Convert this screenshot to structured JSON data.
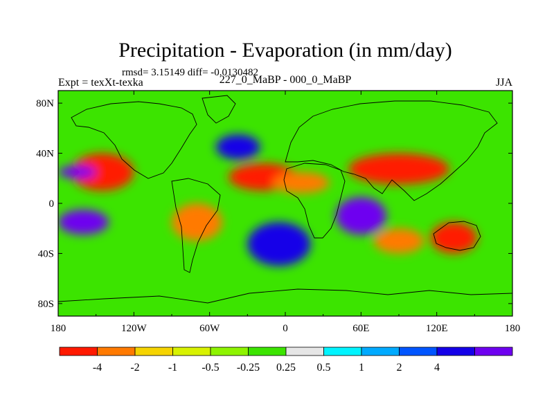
{
  "chart_data": {
    "type": "heatmap",
    "title": "Precipitation - Evaporation (in mm/day)",
    "stats_text": "rmsd= 3.15149 diff= -0.0130482",
    "left_label": "Expt = texXt-texka",
    "center_label": "227_0_MaBP - 000_0_MaBP",
    "right_label": "JJA",
    "x_ticks": [
      "180",
      "120W",
      "60W",
      "0",
      "60E",
      "120E",
      "180"
    ],
    "y_ticks": [
      "80N",
      "40N",
      "0",
      "40S",
      "80S"
    ],
    "xlim": [
      -180,
      180
    ],
    "ylim": [
      -90,
      90
    ],
    "colorbar": {
      "colors": [
        "#ff1a00",
        "#ff7a00",
        "#f6d400",
        "#d8f200",
        "#8ef400",
        "#3ce400",
        "#e6e6e6",
        "#00f4ff",
        "#00aaff",
        "#0055ff",
        "#1500e8",
        "#6e00f0"
      ],
      "labels": [
        "-4",
        "-2",
        "-1",
        "-0.5",
        "-0.25",
        "0.25",
        "0.5",
        "1",
        "2",
        "4"
      ]
    },
    "regions": [
      {
        "name": "north-pacific-dry",
        "x": [
          -170,
          -120
        ],
        "y": [
          10,
          40
        ],
        "bin": 0
      },
      {
        "name": "north-atlantic-dry",
        "x": [
          -45,
          10
        ],
        "y": [
          10,
          32
        ],
        "bin": 0
      },
      {
        "name": "sahara-dry",
        "x": [
          -10,
          35
        ],
        "y": [
          8,
          25
        ],
        "bin": 1
      },
      {
        "name": "asia-dry",
        "x": [
          50,
          130
        ],
        "y": [
          15,
          40
        ],
        "bin": 0
      },
      {
        "name": "australia-dry",
        "x": [
          115,
          152
        ],
        "y": [
          -40,
          -15
        ],
        "bin": 0
      },
      {
        "name": "south-indian-dry",
        "x": [
          70,
          110
        ],
        "y": [
          -40,
          -20
        ],
        "bin": 1
      },
      {
        "name": "south-america-dry",
        "x": [
          -90,
          -50
        ],
        "y": [
          -30,
          0
        ],
        "bin": 1
      },
      {
        "name": "north-america-wet",
        "x": [
          -55,
          -20
        ],
        "y": [
          35,
          55
        ],
        "bin": 10
      },
      {
        "name": "south-atlantic-wet",
        "x": [
          -30,
          20
        ],
        "y": [
          -50,
          -15
        ],
        "bin": 10
      },
      {
        "name": "indian-ocean-wet",
        "x": [
          40,
          80
        ],
        "y": [
          -25,
          5
        ],
        "bin": 11
      },
      {
        "name": "north-pacific-wet",
        "x": [
          -180,
          -150
        ],
        "y": [
          20,
          30
        ],
        "bin": 11
      },
      {
        "name": "south-pacific-wet",
        "x": [
          -180,
          -140
        ],
        "y": [
          -25,
          -5
        ],
        "bin": 11
      }
    ]
  }
}
